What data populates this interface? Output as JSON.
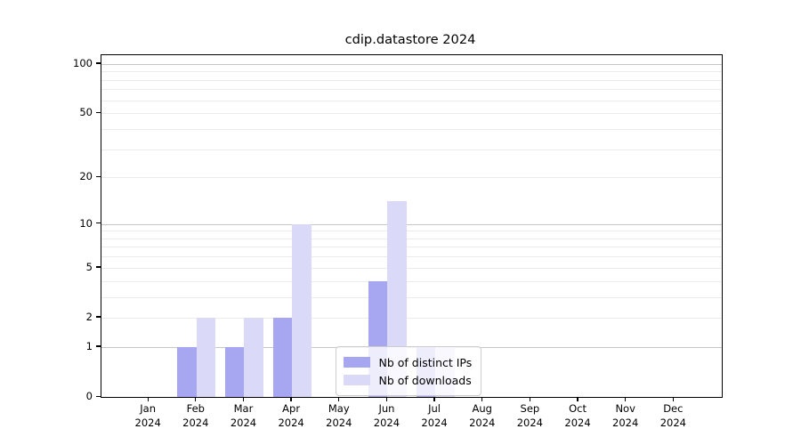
{
  "chart_data": {
    "type": "bar",
    "title": "cdip.datastore 2024",
    "categories": [
      "Jan",
      "Feb",
      "Mar",
      "Apr",
      "May",
      "Jun",
      "Jul",
      "Aug",
      "Sep",
      "Oct",
      "Nov",
      "Dec"
    ],
    "category_year": "2024",
    "series": [
      {
        "name": "Nb of distinct IPs",
        "color": "#a6a6f1",
        "values": [
          0,
          1,
          1,
          2,
          0,
          4,
          1,
          0,
          0,
          0,
          0,
          0
        ]
      },
      {
        "name": "Nb of downloads",
        "color": "#dadaf8",
        "values": [
          0,
          2,
          2,
          10,
          0,
          14,
          1,
          0,
          0,
          0,
          0,
          0
        ]
      }
    ],
    "yscale": "log1p",
    "ylim": [
      0,
      113
    ],
    "yticks": [
      0,
      1,
      2,
      5,
      10,
      20,
      50,
      100
    ],
    "grid": {
      "major": [
        1,
        10,
        100
      ],
      "minor": [
        2,
        3,
        4,
        5,
        6,
        7,
        8,
        9,
        20,
        30,
        40,
        50,
        60,
        70,
        80,
        90
      ]
    },
    "legend_position": "lower center",
    "bar_width_fraction": 0.4
  },
  "colors": {
    "background": "#ffffff",
    "spine": "#000000",
    "grid_major": "#c6c6c6",
    "grid_minor": "#ebebeb",
    "text": "#000000",
    "legend_border": "#cccccc"
  }
}
